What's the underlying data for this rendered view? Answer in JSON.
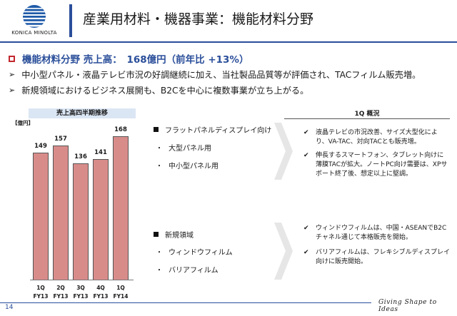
{
  "header": {
    "brand": "KONICA MINOLTA",
    "title": "産業用材料・機器事業：機能材料分野"
  },
  "headline": "機能材料分野 売上高：　168億円（前年比 +13%）",
  "bullets": [
    "中小型パネル・液晶テレビ市況の好調継続に加え、当社製品品質等が評価され、TACフィルム販売増。",
    "新規領域におけるビジネス展開も、B2Cを中心に複数事業が立ち上がる。"
  ],
  "chart": {
    "title": "売上高四半期推移",
    "unit": "【億円】"
  },
  "chart_data": {
    "type": "bar",
    "title": "売上高四半期推移",
    "ylabel": "【億円】",
    "categories": [
      "1Q FY13",
      "2Q FY13",
      "3Q FY13",
      "4Q FY13",
      "1Q FY14"
    ],
    "quarters": [
      "1Q",
      "2Q",
      "3Q",
      "4Q",
      "1Q"
    ],
    "fiscal_years": [
      "FY13",
      "FY13",
      "FY13",
      "FY13",
      "FY14"
    ],
    "values": [
      149,
      157,
      136,
      141,
      168
    ],
    "value_labels": [
      "149",
      "157",
      "136",
      "141",
      "168"
    ],
    "ylim": [
      0,
      200
    ],
    "grid": false,
    "bar_color": "#d88c8a"
  },
  "segments": {
    "flat_panel": {
      "title": "フラットパネルディスプレイ向け",
      "items": [
        "大型パネル用",
        "中小型パネル用"
      ]
    },
    "new_areas": {
      "title": "新規領域",
      "items": [
        "ウィンドウフィルム",
        "バリアフィルム"
      ]
    }
  },
  "summary": {
    "title": "1Q 概況",
    "flat_panel_points": [
      "液晶テレビの市況改善、サイズ大型化により、VA-TAC、対向TACとも販売増。",
      "伸長するスマートフォン、タブレット向けに薄膜TACが拡大。ノートPC向け需要は、XPサポート終了後、想定以上に堅調。"
    ],
    "new_area_points": [
      "ウィンドウフィルムは、中国・ASEANでB2Cチャネル通じて本格販売を開始。",
      "バリアフィルムは、フレキシブルディスプレイ向けに販売開始。"
    ]
  },
  "footer": {
    "page_number": "14",
    "tagline": "Giving Shape to Ideas"
  },
  "colors": {
    "accent_blue": "#2a4e9a",
    "bar_fill": "#d88c8a",
    "headline_marker": "#c2272d"
  }
}
